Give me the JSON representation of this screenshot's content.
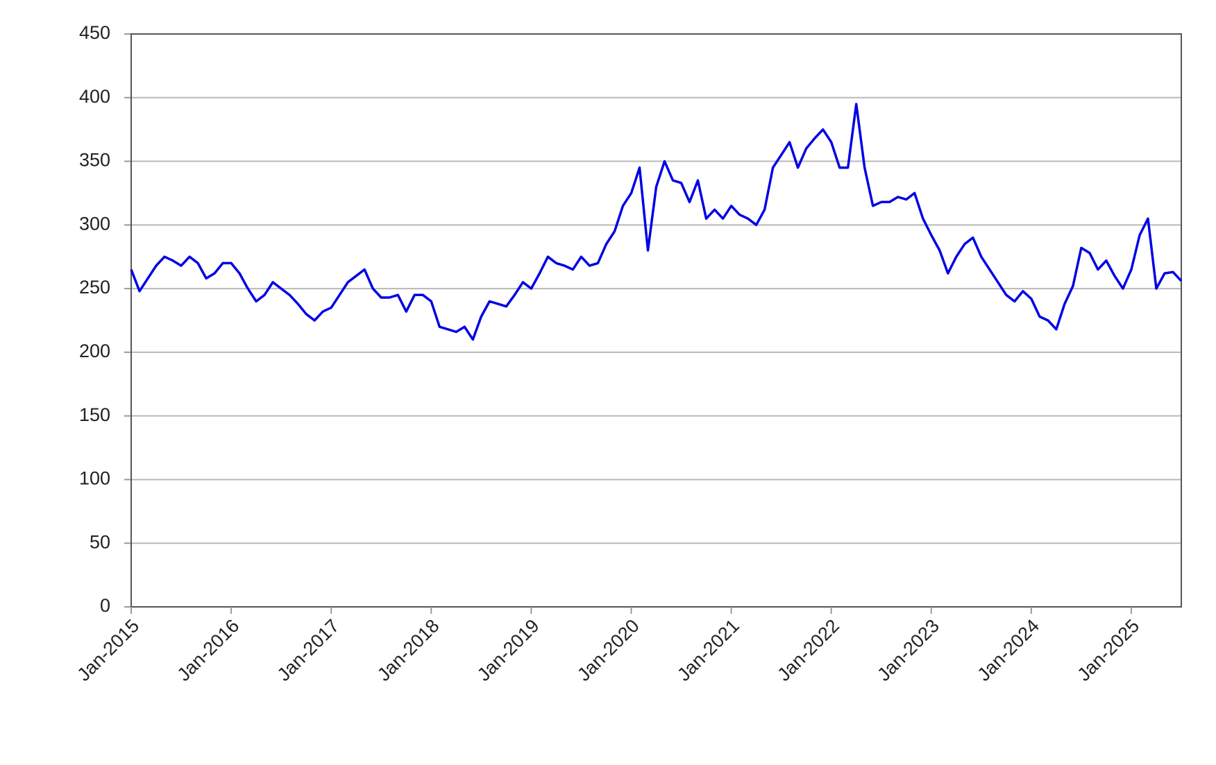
{
  "chart_data": {
    "type": "line",
    "x": [
      "2015-01",
      "2015-02",
      "2015-03",
      "2015-04",
      "2015-05",
      "2015-06",
      "2015-07",
      "2015-08",
      "2015-09",
      "2015-10",
      "2015-11",
      "2015-12",
      "2016-01",
      "2016-02",
      "2016-03",
      "2016-04",
      "2016-05",
      "2016-06",
      "2016-07",
      "2016-08",
      "2016-09",
      "2016-10",
      "2016-11",
      "2016-12",
      "2017-01",
      "2017-02",
      "2017-03",
      "2017-04",
      "2017-05",
      "2017-06",
      "2017-07",
      "2017-08",
      "2017-09",
      "2017-10",
      "2017-11",
      "2017-12",
      "2018-01",
      "2018-02",
      "2018-03",
      "2018-04",
      "2018-05",
      "2018-06",
      "2018-07",
      "2018-08",
      "2018-09",
      "2018-10",
      "2018-11",
      "2018-12",
      "2019-01",
      "2019-02",
      "2019-03",
      "2019-04",
      "2019-05",
      "2019-06",
      "2019-07",
      "2019-08",
      "2019-09",
      "2019-10",
      "2019-11",
      "2019-12",
      "2020-01",
      "2020-02",
      "2020-03",
      "2020-04",
      "2020-05",
      "2020-06",
      "2020-07",
      "2020-08",
      "2020-09",
      "2020-10",
      "2020-11",
      "2020-12",
      "2021-01",
      "2021-02",
      "2021-03",
      "2021-04",
      "2021-05",
      "2021-06",
      "2021-07",
      "2021-08",
      "2021-09",
      "2021-10",
      "2021-11",
      "2021-12",
      "2022-01",
      "2022-02",
      "2022-03",
      "2022-04",
      "2022-05",
      "2022-06",
      "2022-07",
      "2022-08",
      "2022-09",
      "2022-10",
      "2022-11",
      "2022-12",
      "2023-01",
      "2023-02",
      "2023-03",
      "2023-04",
      "2023-05",
      "2023-06",
      "2023-07",
      "2023-08",
      "2023-09",
      "2023-10",
      "2023-11",
      "2023-12",
      "2024-01",
      "2024-02",
      "2024-03",
      "2024-04",
      "2024-05",
      "2024-06",
      "2024-07",
      "2024-08",
      "2024-09",
      "2024-10",
      "2024-11",
      "2024-12",
      "2025-01",
      "2025-02",
      "2025-03",
      "2025-04",
      "2025-05",
      "2025-06",
      "2025-07"
    ],
    "values": [
      265,
      248,
      258,
      268,
      275,
      272,
      268,
      275,
      270,
      258,
      262,
      270,
      270,
      262,
      250,
      240,
      245,
      255,
      250,
      245,
      238,
      230,
      225,
      232,
      235,
      245,
      255,
      260,
      265,
      250,
      243,
      243,
      245,
      232,
      245,
      245,
      240,
      220,
      218,
      216,
      220,
      210,
      228,
      240,
      238,
      236,
      245,
      255,
      250,
      262,
      275,
      270,
      268,
      265,
      275,
      268,
      270,
      285,
      295,
      315,
      325,
      345,
      280,
      330,
      350,
      335,
      333,
      318,
      335,
      305,
      312,
      305,
      315,
      308,
      305,
      300,
      312,
      345,
      355,
      365,
      345,
      360,
      368,
      375,
      365,
      345,
      345,
      395,
      345,
      315,
      318,
      318,
      322,
      320,
      325,
      305,
      292,
      280,
      262,
      275,
      285,
      290,
      275,
      265,
      255,
      245,
      240,
      248,
      242,
      228,
      225,
      218,
      238,
      252,
      282,
      278,
      265,
      272,
      260,
      250,
      265,
      292,
      305,
      250,
      262,
      263,
      256
    ],
    "color": "#0000e6",
    "xlim": [
      "2015-01",
      "2025-07"
    ],
    "xticks": [
      {
        "value": "2015-01",
        "label": "Jan-2015"
      },
      {
        "value": "2016-01",
        "label": "Jan-2016"
      },
      {
        "value": "2017-01",
        "label": "Jan-2017"
      },
      {
        "value": "2018-01",
        "label": "Jan-2018"
      },
      {
        "value": "2019-01",
        "label": "Jan-2019"
      },
      {
        "value": "2020-01",
        "label": "Jan-2020"
      },
      {
        "value": "2021-01",
        "label": "Jan-2021"
      },
      {
        "value": "2022-01",
        "label": "Jan-2022"
      },
      {
        "value": "2023-01",
        "label": "Jan-2023"
      },
      {
        "value": "2024-01",
        "label": "Jan-2024"
      },
      {
        "value": "2025-01",
        "label": "Jan-2025"
      }
    ],
    "ylim": [
      0,
      450
    ],
    "yticks": [
      0,
      50,
      100,
      150,
      200,
      250,
      300,
      350,
      400,
      450
    ],
    "grid": true
  }
}
